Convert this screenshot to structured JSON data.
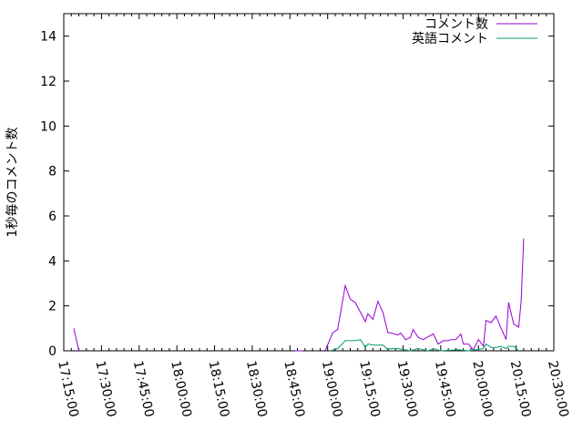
{
  "chart_data": {
    "type": "line",
    "title": "",
    "xlabel": "",
    "ylabel": "1秒毎のコメント数",
    "xlim": [
      "17:15:00",
      "20:30:00"
    ],
    "ylim": [
      0,
      15
    ],
    "xticks": [
      "17:15:00",
      "17:30:00",
      "17:45:00",
      "18:00:00",
      "18:15:00",
      "18:30:00",
      "18:45:00",
      "19:00:00",
      "19:15:00",
      "19:30:00",
      "19:45:00",
      "20:00:00",
      "20:15:00",
      "20:30:00"
    ],
    "yticks": [
      "0",
      "2",
      "4",
      "6",
      "8",
      "10",
      "12",
      "14"
    ],
    "grid": false,
    "legend_position": "top-right",
    "series": [
      {
        "name": "コメント数",
        "color": "#9400d3",
        "points": [
          [
            "17:19",
            1.0
          ],
          [
            "17:21",
            0
          ],
          null,
          [
            "18:47",
            0
          ],
          [
            "18:50",
            0
          ],
          null,
          [
            "18:59",
            0
          ],
          [
            "19:02",
            0.8
          ],
          [
            "19:04",
            0.95
          ],
          [
            "19:07",
            2.9
          ],
          [
            "19:09",
            2.3
          ],
          [
            "19:11",
            2.15
          ],
          [
            "19:15",
            1.3
          ],
          [
            "19:16",
            1.65
          ],
          [
            "19:18",
            1.4
          ],
          [
            "19:20",
            2.2
          ],
          [
            "19:22",
            1.7
          ],
          [
            "19:24",
            0.8
          ],
          [
            "19:25",
            0.8
          ],
          [
            "19:28",
            0.7
          ],
          [
            "19:29",
            0.8
          ],
          [
            "19:31",
            0.5
          ],
          [
            "19:33",
            0.6
          ],
          [
            "19:34",
            0.95
          ],
          [
            "19:36",
            0.6
          ],
          [
            "19:38",
            0.5
          ],
          [
            "19:42",
            0.75
          ],
          [
            "19:44",
            0.3
          ],
          [
            "19:46",
            0.45
          ],
          [
            "19:48",
            0.45
          ],
          [
            "19:49",
            0.5
          ],
          [
            "19:51",
            0.5
          ],
          [
            "19:53",
            0.75
          ],
          [
            "19:54",
            0.3
          ],
          [
            "19:56",
            0.3
          ],
          [
            "19:58",
            0.05
          ],
          [
            "20:00",
            0.5
          ],
          [
            "20:02",
            0.2
          ],
          [
            "20:03",
            1.35
          ],
          [
            "20:05",
            1.25
          ],
          [
            "20:07",
            1.55
          ],
          [
            "20:09",
            1.0
          ],
          [
            "20:11",
            0.5
          ],
          [
            "20:12",
            2.15
          ],
          [
            "20:14",
            1.2
          ],
          [
            "20:16",
            1.05
          ],
          [
            "20:17",
            2.2
          ],
          [
            "20:18",
            5.0
          ]
        ]
      },
      {
        "name": "英語コメント",
        "color": "#009e73",
        "points": [
          [
            "19:01",
            0
          ],
          [
            "19:04",
            0.1
          ],
          [
            "19:07",
            0.45
          ],
          [
            "19:11",
            0.45
          ],
          [
            "19:13",
            0.5
          ],
          [
            "19:15",
            0.15
          ],
          [
            "19:16",
            0.3
          ],
          [
            "19:18",
            0.25
          ],
          [
            "19:22",
            0.25
          ],
          [
            "19:24",
            0.05
          ],
          [
            "19:25",
            0.1
          ],
          [
            "19:28",
            0.1
          ],
          [
            "19:33",
            0
          ],
          [
            "19:36",
            0.1
          ],
          [
            "19:40",
            0
          ],
          [
            "19:42",
            0.1
          ],
          [
            "19:45",
            0
          ],
          [
            "19:52",
            0.05
          ],
          [
            "19:56",
            0
          ],
          [
            "20:02",
            0.1
          ],
          [
            "20:03",
            0.3
          ],
          [
            "20:05",
            0.15
          ],
          [
            "20:07",
            0.15
          ],
          [
            "20:09",
            0.2
          ],
          [
            "20:11",
            0.1
          ],
          [
            "20:12",
            0.2
          ],
          [
            "20:14",
            0.2
          ],
          [
            "20:16",
            0
          ]
        ]
      }
    ]
  }
}
